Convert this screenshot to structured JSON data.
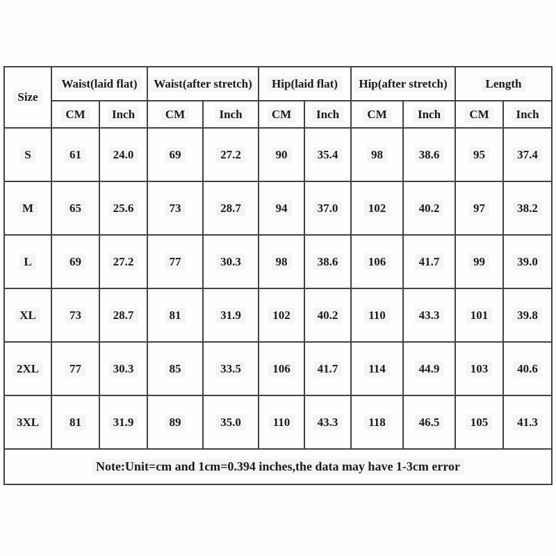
{
  "table": {
    "corner_label": "Size",
    "groups": [
      {
        "label": "Waist(laid flat)"
      },
      {
        "label": "Waist(after stretch)"
      },
      {
        "label": "Hip(laid flat)"
      },
      {
        "label": "Hip(after stretch)"
      },
      {
        "label": "Length"
      }
    ],
    "subheaders": [
      "CM",
      "Inch"
    ],
    "rows": [
      {
        "size": "S",
        "values": [
          "61",
          "24.0",
          "69",
          "27.2",
          "90",
          "35.4",
          "98",
          "38.6",
          "95",
          "37.4"
        ]
      },
      {
        "size": "M",
        "values": [
          "65",
          "25.6",
          "73",
          "28.7",
          "94",
          "37.0",
          "102",
          "40.2",
          "97",
          "38.2"
        ]
      },
      {
        "size": "L",
        "values": [
          "69",
          "27.2",
          "77",
          "30.3",
          "98",
          "38.6",
          "106",
          "41.7",
          "99",
          "39.0"
        ]
      },
      {
        "size": "XL",
        "values": [
          "73",
          "28.7",
          "81",
          "31.9",
          "102",
          "40.2",
          "110",
          "43.3",
          "101",
          "39.8"
        ]
      },
      {
        "size": "2XL",
        "values": [
          "77",
          "30.3",
          "85",
          "33.5",
          "106",
          "41.7",
          "114",
          "44.9",
          "103",
          "40.6"
        ]
      },
      {
        "size": "3XL",
        "values": [
          "81",
          "31.9",
          "89",
          "35.0",
          "110",
          "43.3",
          "118",
          "46.5",
          "105",
          "41.3"
        ]
      }
    ],
    "note": "Note:Unit=cm and 1cm=0.394 inches,the data may have 1-3cm error"
  },
  "colors": {
    "border": "#414141",
    "text": "#1a1a1a",
    "background": "#fdfdfd"
  },
  "chart_data": {
    "type": "table",
    "title": "Size chart",
    "columns": [
      "Size",
      "Waist(laid flat) CM",
      "Waist(laid flat) Inch",
      "Waist(after stretch) CM",
      "Waist(after stretch) Inch",
      "Hip(laid flat) CM",
      "Hip(laid flat) Inch",
      "Hip(after stretch) CM",
      "Hip(after stretch) Inch",
      "Length CM",
      "Length Inch"
    ],
    "rows": [
      [
        "S",
        61,
        24.0,
        69,
        27.2,
        90,
        35.4,
        98,
        38.6,
        95,
        37.4
      ],
      [
        "M",
        65,
        25.6,
        73,
        28.7,
        94,
        37.0,
        102,
        40.2,
        97,
        38.2
      ],
      [
        "L",
        69,
        27.2,
        77,
        30.3,
        98,
        38.6,
        106,
        41.7,
        99,
        39.0
      ],
      [
        "XL",
        73,
        28.7,
        81,
        31.9,
        102,
        40.2,
        110,
        43.3,
        101,
        39.8
      ],
      [
        "2XL",
        77,
        30.3,
        85,
        33.5,
        106,
        41.7,
        114,
        44.9,
        103,
        40.6
      ],
      [
        "3XL",
        81,
        31.9,
        89,
        35.0,
        110,
        43.3,
        118,
        46.5,
        105,
        41.3
      ]
    ],
    "note": "Note:Unit=cm and 1cm=0.394 inches,the data may have 1-3cm error"
  }
}
